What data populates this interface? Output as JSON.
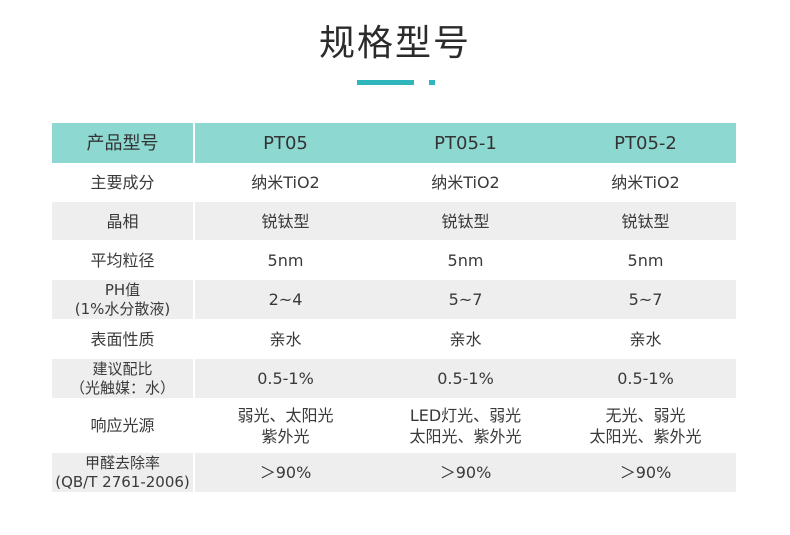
{
  "page": {
    "title": "规格型号"
  },
  "table": {
    "headers": [
      "产品型号",
      "PT05",
      "PT05-1",
      "PT05-2"
    ],
    "rows": [
      {
        "label": [
          "主要成分"
        ],
        "values": [
          [
            "纳米TiO2"
          ],
          [
            "纳米TiO2"
          ],
          [
            "纳米TiO2"
          ]
        ]
      },
      {
        "label": [
          "晶相"
        ],
        "values": [
          [
            "锐钛型"
          ],
          [
            "锐钛型"
          ],
          [
            "锐钛型"
          ]
        ]
      },
      {
        "label": [
          "平均粒径"
        ],
        "values": [
          [
            "5nm"
          ],
          [
            "5nm"
          ],
          [
            "5nm"
          ]
        ]
      },
      {
        "label": [
          "PH值",
          "(1%水分散液)"
        ],
        "values": [
          [
            "2~4"
          ],
          [
            "5~7"
          ],
          [
            "5~7"
          ]
        ]
      },
      {
        "label": [
          "表面性质"
        ],
        "values": [
          [
            "亲水"
          ],
          [
            "亲水"
          ],
          [
            "亲水"
          ]
        ]
      },
      {
        "label": [
          "建议配比",
          "（光触媒：水）"
        ],
        "values": [
          [
            "0.5-1%"
          ],
          [
            "0.5-1%"
          ],
          [
            "0.5-1%"
          ]
        ]
      },
      {
        "label": [
          "响应光源"
        ],
        "values": [
          [
            "弱光、太阳光",
            "紫外光"
          ],
          [
            "LED灯光、弱光",
            "太阳光、紫外光"
          ],
          [
            "无光、弱光",
            "太阳光、紫外光"
          ]
        ]
      },
      {
        "label": [
          "甲醛去除率",
          "(QB/T 2761-2006)"
        ],
        "values": [
          [
            "＞90%"
          ],
          [
            "＞90%"
          ],
          [
            "＞90%"
          ]
        ]
      }
    ]
  },
  "colors": {
    "header_bg": "#8ed8d2",
    "zebra_bg": "#eeeeee",
    "accent": "#2fb6bd"
  }
}
